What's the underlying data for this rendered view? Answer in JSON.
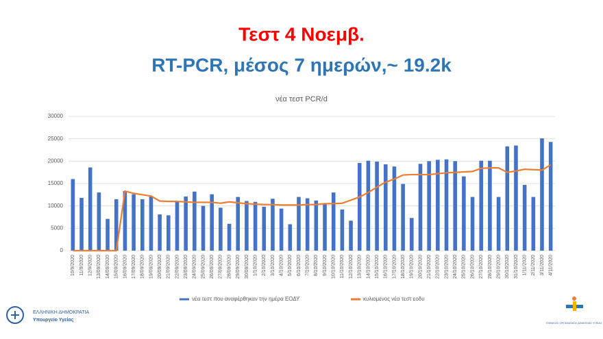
{
  "slide": {
    "heading": "Τεστ  4 Νοεμβ.",
    "subheading": "RT-PCR, μέσος 7 ημερών,~ 19.2k"
  },
  "logos": {
    "left_line1": "ΕΛΛΗΝΙΚΗ ΔΗΜΟΚΡΑΤΙΑ",
    "left_line2": "Υπουργείο Υγείας",
    "right": "ΕΘΝΙΚΟΣ ΟΡΓΑΝΙΣΜΟΣ ΔΗΜΟΣΙΑΣ ΥΓΕΙΑΣ"
  },
  "chart_data": {
    "type": "bar",
    "title": "νέα τεστ PCR/d",
    "categories": [
      "10/9/2020",
      "11/9/2020",
      "12/9/2020",
      "13/09/2020",
      "14/09/2020",
      "15/09/2020",
      "16/09/2020",
      "17/09/2020",
      "18/09/2020",
      "19/09/2020",
      "20/09/2020",
      "21/09/2020",
      "22/09/2020",
      "23/09/2020",
      "24/09/2020",
      "25/09/2020",
      "26/09/2020",
      "27/09/2020",
      "28/09/2020",
      "29/09/2020",
      "30/09/2020",
      "1/10/2020",
      "2/10/2020",
      "3/10/2020",
      "4/10/2020",
      "5/10/2020",
      "6/10/2020",
      "7/10/2020",
      "8/10/2020",
      "9/10/2020",
      "10/10/2020",
      "11/10/2020",
      "12/10/2020",
      "13/10/2020",
      "14/10/2020",
      "15/10/2020",
      "16/10/2020",
      "17/10/2020",
      "18/10/2020",
      "19/10/2020",
      "20/10/2020",
      "21/10/2020",
      "22/10/2020",
      "23/10/2020",
      "24/10/2020",
      "25/10/2020",
      "26/10/2020",
      "27/10/2020",
      "28/10/2020",
      "29/10/2020",
      "30/10/2020",
      "31/10/2020",
      "1/11/2020",
      "2/11/2020",
      "3/11/2020",
      "4/11/2020"
    ],
    "series": [
      {
        "name": "νέα τεστ που αναφέρθηκαν την ημέρα ΕΟΔΥ",
        "type": "bar",
        "color": "#4472c4",
        "values": [
          16000,
          11800,
          18600,
          13000,
          7100,
          11500,
          13300,
          12600,
          11500,
          12200,
          8100,
          7900,
          10900,
          12100,
          13200,
          10000,
          12600,
          9600,
          6000,
          12000,
          11100,
          10900,
          9800,
          11600,
          9400,
          5900,
          12000,
          11700,
          11200,
          10400,
          13000,
          9200,
          6700,
          19600,
          20100,
          19900,
          19300,
          18800,
          14900,
          7300,
          19400,
          20000,
          20300,
          20400,
          20000,
          16600,
          12000,
          20100,
          20100,
          12000,
          23300,
          23500,
          14700,
          12000,
          25100,
          24300
        ]
      },
      {
        "name": "κυλιομενος νέα τεστ εοδυ",
        "type": "line",
        "color": "#ed7d31",
        "values": [
          0,
          0,
          0,
          0,
          0,
          0,
          13300,
          12800,
          12500,
          12200,
          11100,
          11000,
          11000,
          10900,
          10800,
          10800,
          10800,
          10600,
          10900,
          10700,
          10500,
          10400,
          10300,
          10300,
          10200,
          10200,
          10200,
          10300,
          10300,
          10500,
          10500,
          10600,
          11300,
          12000,
          13000,
          14200,
          15300,
          16000,
          16900,
          17000,
          17000,
          17000,
          17200,
          17400,
          17500,
          17600,
          17700,
          18400,
          18500,
          18500,
          17500,
          17800,
          18200,
          18100,
          18000,
          19200
        ]
      }
    ],
    "ylim": [
      0,
      30000
    ],
    "yticks": [
      0,
      5000,
      10000,
      15000,
      20000,
      25000,
      30000
    ],
    "grid": true
  }
}
